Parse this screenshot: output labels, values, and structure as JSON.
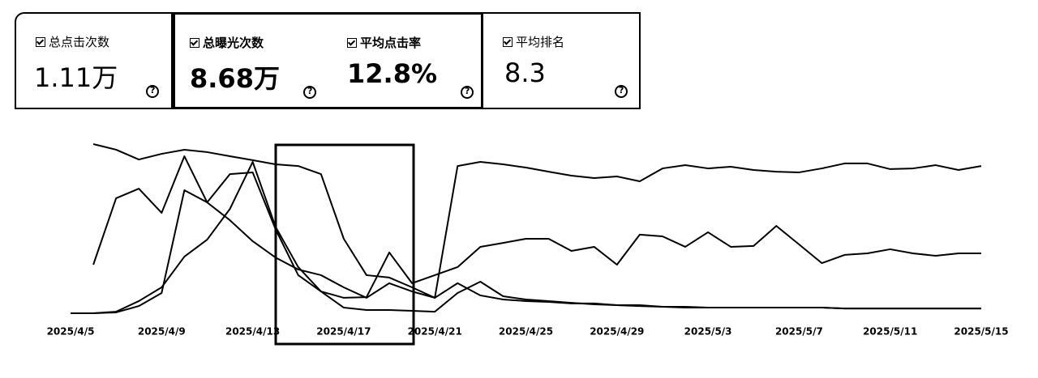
{
  "cards": [
    {
      "label": "总点击次数",
      "value": "1.11万"
    },
    {
      "label": "总曝光次数",
      "value": "8.68万"
    },
    {
      "label": "平均点击率",
      "value": "12.8%"
    },
    {
      "label": "平均排名",
      "value": "8.3"
    }
  ],
  "chart_data": {
    "type": "line",
    "categories": [
      "2025/4/5",
      null,
      null,
      null,
      "2025/4/9",
      null,
      null,
      null,
      "2025/4/13",
      null,
      null,
      null,
      "2025/4/17",
      null,
      null,
      null,
      "2025/4/21",
      null,
      null,
      null,
      "2025/4/25",
      null,
      null,
      null,
      "2025/4/29",
      null,
      null,
      null,
      "2025/5/3",
      null,
      null,
      null,
      "2025/5/7",
      null,
      null,
      null,
      "2025/5/11",
      null,
      null,
      null,
      "2025/5/15"
    ],
    "ylim": [
      0,
      100
    ],
    "series": [
      {
        "name": "平均排名",
        "color": "#000000",
        "values": [
          null,
          98.6,
          95.3,
          89.6,
          92.9,
          95.3,
          93.9,
          91.5,
          89.2,
          86.8,
          85.8,
          81.1,
          43.4,
          22.2,
          20.8,
          15.1,
          9.0,
          85.8,
          88.2,
          86.8,
          84.9,
          82.5,
          80.2,
          78.8,
          79.7,
          76.9,
          84.4,
          86.3,
          84.4,
          85.4,
          83.5,
          82.5,
          82.1,
          84.4,
          87.3,
          87.3,
          84.0,
          84.4,
          86.3,
          83.5,
          85.8
        ]
      },
      {
        "name": "平均点击率",
        "color": "#000000",
        "values": [
          null,
          28.3,
          67.0,
          72.6,
          58.5,
          91.5,
          64.6,
          81.1,
          82.1,
          49.1,
          22.2,
          12.7,
          9.0,
          9.4,
          35.4,
          17.5,
          22.2,
          26.9,
          38.7,
          41.0,
          43.4,
          43.4,
          36.3,
          38.7,
          28.3,
          45.8,
          44.8,
          38.7,
          47.2,
          38.7,
          39.2,
          50.9,
          40.1,
          29.2,
          34.0,
          34.9,
          37.3,
          34.9,
          33.5,
          34.9,
          34.9
        ]
      },
      {
        "name": "总曝光次数",
        "color": "#000000",
        "values": [
          0,
          0,
          0.9,
          7.1,
          15.1,
          33.0,
          42.9,
          60.8,
          88.2,
          50.5,
          26.9,
          12.7,
          3.3,
          1.9,
          1.9,
          1.4,
          0.9,
          11.8,
          18.4,
          9.9,
          8.0,
          7.1,
          6.1,
          5.2,
          4.7,
          4.7,
          3.8,
          3.8,
          3.3,
          3.3,
          3.3,
          3.3,
          3.3,
          3.3,
          2.8,
          2.8,
          2.8,
          2.8,
          2.8,
          2.8,
          2.8
        ]
      },
      {
        "name": "总点击次数",
        "color": "#000000",
        "values": [
          0,
          0,
          0.5,
          4.2,
          11.8,
          71.7,
          64.6,
          54.2,
          42.0,
          32.5,
          25.5,
          22.2,
          15.1,
          9.0,
          17.5,
          12.7,
          9.0,
          17.5,
          10.4,
          8.0,
          7.1,
          6.6,
          5.7,
          5.7,
          4.7,
          4.2,
          3.8,
          3.3,
          3.3,
          3.3,
          3.3,
          3.3,
          3.3,
          3.3,
          2.8,
          2.8,
          2.8,
          2.8,
          2.8,
          2.8,
          2.8
        ]
      }
    ]
  }
}
